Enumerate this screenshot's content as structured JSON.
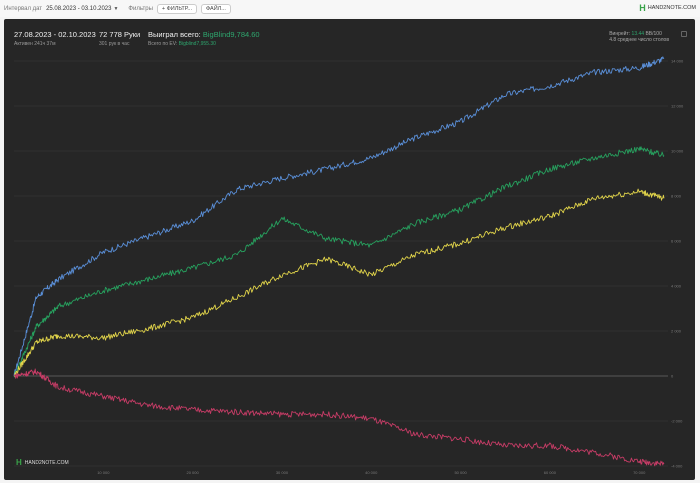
{
  "topbar": {
    "interval_label": "Интервал дат",
    "date_range": "25.08.2023 - 03.10.2023",
    "filters_label": "Фильтры",
    "filter_button": "+ ФИЛЬТР...",
    "file_button": "ФАЙЛ...",
    "brand": "HAND2NOTE.COM"
  },
  "panel": {
    "period": "27.08.2023 - 02.10.2023",
    "active": "Активен 241ч 37м",
    "hands": "72 778 Руки",
    "hands_per_hour": "301 рук в час",
    "won_label": "Выиграл всего:",
    "won_value": "BigBlind9,784.60",
    "ev_label": "Всего по EV:",
    "ev_value": "Bigblind7,955.30",
    "winrate_label": "Винрейт:",
    "winrate_value": "13.44",
    "winrate_unit": "BB/100",
    "tables": "4.8 среднее число столов",
    "brand": "HAND2NOTE.COM"
  },
  "chart_data": {
    "type": "line",
    "x_ticks": [
      "10 000",
      "20 000",
      "30 000",
      "40 000",
      "50 000",
      "60 000",
      "70 000"
    ],
    "y_ticks": [
      "14 000",
      "12 000",
      "10 000",
      "8 000",
      "6 000",
      "4 000",
      "2 000",
      "0",
      "-2 000",
      "-4 000"
    ],
    "xlim": [
      0,
      72778
    ],
    "ylim": [
      -4000,
      14000
    ],
    "series": [
      {
        "color": "#5a8fd8",
        "x": [
          0,
          2500,
          5000,
          10000,
          15000,
          20000,
          25000,
          30000,
          35000,
          40000,
          45000,
          50000,
          55000,
          60000,
          65000,
          70000,
          72778
        ],
        "values": [
          0,
          3500,
          4300,
          5500,
          6200,
          6900,
          8300,
          8800,
          9200,
          9700,
          10600,
          11300,
          12500,
          12900,
          13500,
          13700,
          14100
        ]
      },
      {
        "color": "#27a05e",
        "x": [
          0,
          2500,
          5000,
          10000,
          15000,
          20000,
          25000,
          30000,
          35000,
          40000,
          45000,
          50000,
          55000,
          60000,
          65000,
          70000,
          72778
        ],
        "values": [
          0,
          2200,
          3100,
          3800,
          4300,
          4800,
          5400,
          7000,
          6100,
          5800,
          6800,
          7400,
          8400,
          9200,
          9700,
          10100,
          9800
        ]
      },
      {
        "color": "#e0d34a",
        "x": [
          0,
          2500,
          5000,
          10000,
          15000,
          20000,
          25000,
          30000,
          35000,
          40000,
          45000,
          50000,
          55000,
          60000,
          65000,
          70000,
          72778
        ],
        "values": [
          0,
          1500,
          1800,
          1700,
          2100,
          2600,
          3500,
          4500,
          5200,
          4500,
          5400,
          5900,
          6600,
          7100,
          7900,
          8200,
          7900
        ]
      },
      {
        "color": "#c63c66",
        "x": [
          0,
          2500,
          5000,
          10000,
          15000,
          20000,
          25000,
          30000,
          35000,
          40000,
          45000,
          50000,
          55000,
          60000,
          65000,
          70000,
          72778
        ],
        "values": [
          0,
          200,
          -500,
          -900,
          -1300,
          -1500,
          -1600,
          -1700,
          -1700,
          -1900,
          -2600,
          -2800,
          -3100,
          -3100,
          -3400,
          -3800,
          -3900
        ]
      }
    ]
  }
}
